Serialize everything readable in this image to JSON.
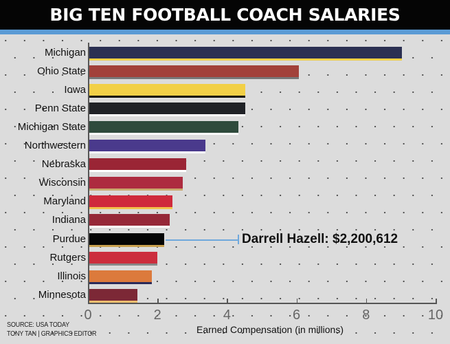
{
  "header": {
    "title": "BIG TEN FOOTBALL COACH SALARIES"
  },
  "colors": {
    "header_bg": "#050505",
    "stripe": "#5b9bd5",
    "background": "#dcdcdc",
    "callout": "#6fa8dc"
  },
  "callout": {
    "text": "Darrell Hazell: $2,200,612",
    "target": "Purdue"
  },
  "footer": {
    "source": "SOURCE: USA TODAY",
    "credit": "TONY TAN | GRAPHICS EDITOR"
  },
  "chart_data": {
    "type": "bar",
    "orientation": "horizontal",
    "title": "BIG TEN FOOTBALL COACH SALARIES",
    "xlabel": "Earned Compensation (in millions)",
    "ylabel": "",
    "xlim": [
      0,
      10
    ],
    "xticks": [
      "0",
      "2",
      "4",
      "6",
      "8",
      "10"
    ],
    "grid": false,
    "legend": null,
    "categories": [
      "Michigan",
      "Ohio State",
      "Iowa",
      "Penn State",
      "Michigan State",
      "Northwestern",
      "Nebraska",
      "Wisconsin",
      "Maryland",
      "Indiana",
      "Purdue",
      "Rutgers",
      "Illinois",
      "Minnesota"
    ],
    "values": [
      9.05,
      6.08,
      4.53,
      4.53,
      4.33,
      3.38,
      2.83,
      2.73,
      2.43,
      2.35,
      2.2,
      2.0,
      1.84,
      1.42
    ],
    "bar_colors": [
      "#2b3052",
      "#a2413a",
      "#f2d047",
      "#202226",
      "#2f4a3c",
      "#4a3a8c",
      "#9a2535",
      "#ad2b3f",
      "#cf2a3c",
      "#962838",
      "#050505",
      "#cc2d3d",
      "#dc7a3c",
      "#7c2836"
    ],
    "underline_colors": [
      "#f2d047",
      "#777777",
      "#050505",
      "#ffffff",
      "#ffffff",
      "#ffffff",
      "#ffffff",
      "#c9a96e",
      "#f2c24a",
      "#ffffff",
      "#c9a04e",
      "#888888",
      "#2a2a5a",
      "#f0c070"
    ],
    "annotations": [
      {
        "category": "Purdue",
        "text": "Darrell Hazell: $2,200,612"
      }
    ]
  }
}
